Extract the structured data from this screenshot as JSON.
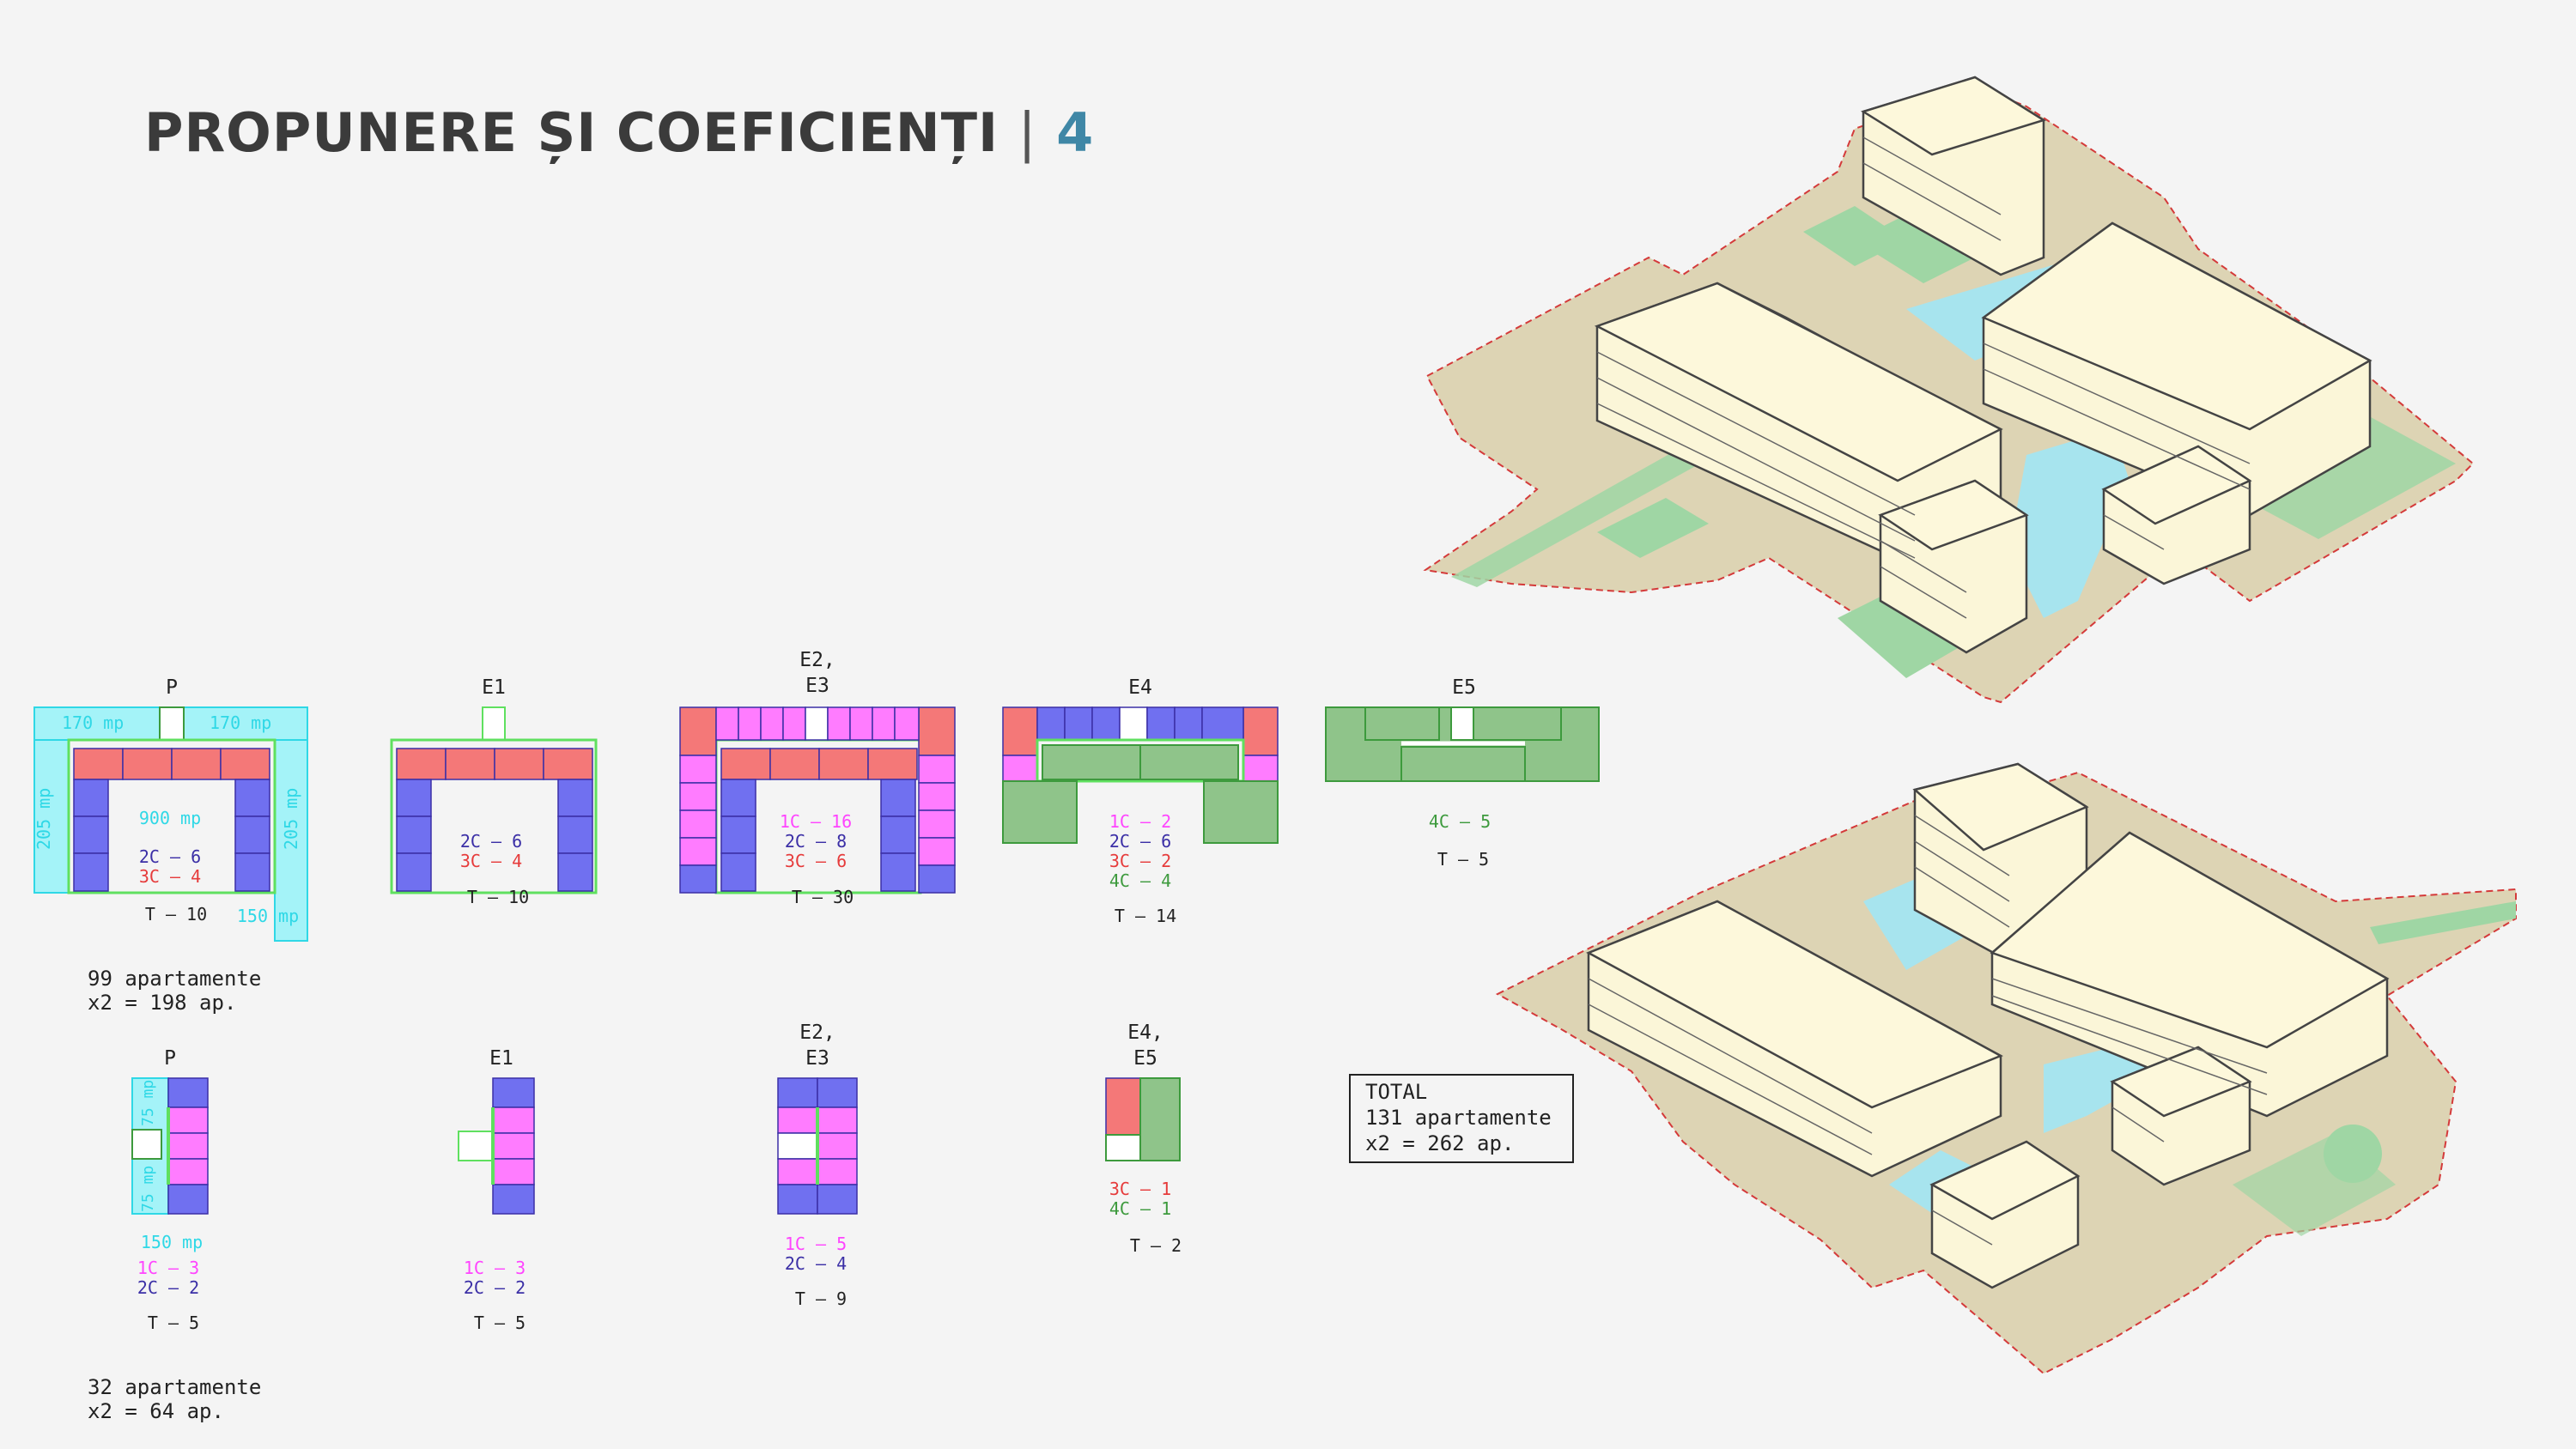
{
  "header": {
    "title_main": "PROPUNERE ȘI COEFICIENȚI",
    "title_sep": "|",
    "title_number": "4"
  },
  "colors": {
    "one_room": "#ff44ff",
    "two_room": "#3b2fa6",
    "three_room": "#e63b3b",
    "four_room": "#3d9a3d",
    "area_label": "#2fd8e6",
    "total": "#222222"
  },
  "set1": {
    "P": {
      "label": "P",
      "area_top_left": "170 mp",
      "area_top_right": "170 mp",
      "area_left": "205 mp",
      "area_right": "205 mp",
      "area_center": "900 mp",
      "area_bottom": "150 mp",
      "l1": "2C – 6",
      "l2": "3C – 4",
      "total": "T – 10"
    },
    "E1": {
      "label": "E1",
      "l1": "2C – 6",
      "l2": "3C – 4",
      "total": "T – 10"
    },
    "E23": {
      "label1": "E2,",
      "label2": "E3",
      "l1": "1C – 16",
      "l2": "2C – 8",
      "l3": "3C – 6",
      "total": "T – 30"
    },
    "E4": {
      "label": "E4",
      "l1": "1C – 2",
      "l2": "2C – 6",
      "l3": "3C – 2",
      "l4": "4C – 4",
      "total": "T – 14"
    },
    "E5": {
      "label": "E5",
      "l1": "4C – 5",
      "total": "T – 5"
    },
    "summary1": "99 apartamente",
    "summary2": "x2 = 198 ap."
  },
  "set2": {
    "P": {
      "label": "P",
      "area_top": "75 mp",
      "area_bottom": "75 mp",
      "area_total": "150 mp",
      "l1": "1C – 3",
      "l2": "2C – 2",
      "total": "T – 5"
    },
    "E1": {
      "label": "E1",
      "l1": "1C – 3",
      "l2": "2C – 2",
      "total": "T – 5"
    },
    "E23": {
      "label1": "E2,",
      "label2": "E3",
      "l1": "1C – 5",
      "l2": "2C – 4",
      "total": "T – 9"
    },
    "E45": {
      "label1": "E4,",
      "label2": "E5",
      "l1": "3C – 1",
      "l2": "4C – 1",
      "total": "T – 2"
    },
    "summary1": "32 apartamente",
    "summary2": "x2 = 64 ap."
  },
  "total_box": {
    "l1": "TOTAL",
    "l2": "131 apartamente",
    "l3": "x2 = 262 ap."
  }
}
